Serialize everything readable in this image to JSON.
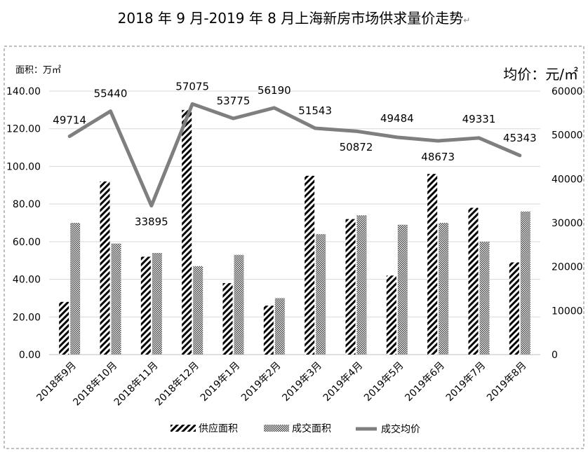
{
  "chart_data": {
    "type": "bar",
    "title": "2018 年 9 月-2019 年 8 月上海新房市场供求量价走势",
    "title_mark": "↵",
    "y_left_label": "面积：万㎡",
    "y_right_label": "均价：元/㎡",
    "y_left_lim": [
      0,
      140
    ],
    "y_left_ticks": [
      "0.00",
      "20.00",
      "40.00",
      "60.00",
      "80.00",
      "100.00",
      "120.00",
      "140.00"
    ],
    "y_right_lim": [
      0,
      60000
    ],
    "y_right_ticks": [
      "0",
      "10000",
      "20000",
      "30000",
      "40000",
      "50000",
      "60000"
    ],
    "categories": [
      "2018年9月",
      "2018年10月",
      "2018年11月",
      "2018年12月",
      "2019年1月",
      "2019年2月",
      "2019年3月",
      "2019年4月",
      "2019年5月",
      "2019年6月",
      "2019年7月",
      "2019年8月"
    ],
    "series": [
      {
        "name": "供应面积",
        "type": "bar",
        "axis": "left",
        "pattern": "diagonal-hatch",
        "values": [
          28,
          92,
          52,
          130,
          38,
          26,
          95,
          72,
          42,
          96,
          78,
          49
        ]
      },
      {
        "name": "成交面积",
        "type": "bar",
        "axis": "left",
        "pattern": "crosshatch",
        "values": [
          70,
          59,
          54,
          47,
          53,
          30,
          64,
          74,
          69,
          70,
          60,
          76
        ]
      },
      {
        "name": "成交均价",
        "type": "line",
        "axis": "right",
        "color": "#7f7f7f",
        "values": [
          49714,
          55440,
          33895,
          57075,
          53775,
          56190,
          51543,
          50872,
          49484,
          48673,
          49331,
          45343
        ]
      }
    ],
    "legend": "bottom",
    "grid": true
  }
}
